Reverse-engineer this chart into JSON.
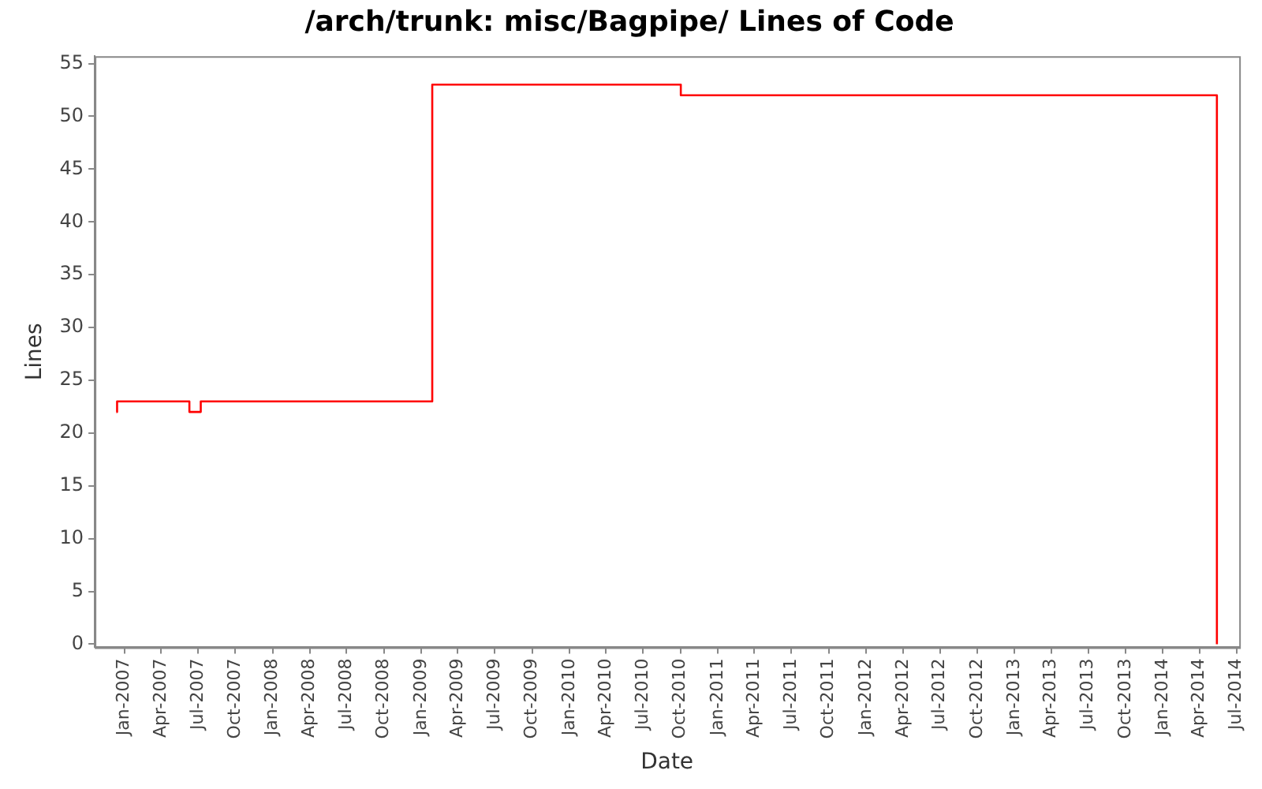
{
  "chart_data": {
    "type": "step",
    "title": "/arch/trunk: misc/Bagpipe/ Lines of Code",
    "xlabel": "Date",
    "ylabel": "Lines",
    "x": [
      "2006-12-12",
      "2006-12-14",
      "2007-06-10",
      "2007-07-08",
      "2009-01-28",
      "2010-10-02",
      "2014-05-14"
    ],
    "series": [
      {
        "color": "#ff0000",
        "values": [
          22,
          23,
          22,
          23,
          53,
          52,
          0
        ]
      }
    ],
    "xlim": [
      "2006-10-20",
      "2014-07-08"
    ],
    "xticks": [
      {
        "value": "2007-01-01",
        "label": "Jan-2007"
      },
      {
        "value": "2007-04-01",
        "label": "Apr-2007"
      },
      {
        "value": "2007-07-01",
        "label": "Jul-2007"
      },
      {
        "value": "2007-10-01",
        "label": "Oct-2007"
      },
      {
        "value": "2008-01-01",
        "label": "Jan-2008"
      },
      {
        "value": "2008-04-01",
        "label": "Apr-2008"
      },
      {
        "value": "2008-07-01",
        "label": "Jul-2008"
      },
      {
        "value": "2008-10-01",
        "label": "Oct-2008"
      },
      {
        "value": "2009-01-01",
        "label": "Jan-2009"
      },
      {
        "value": "2009-04-01",
        "label": "Apr-2009"
      },
      {
        "value": "2009-07-01",
        "label": "Jul-2009"
      },
      {
        "value": "2009-10-01",
        "label": "Oct-2009"
      },
      {
        "value": "2010-01-01",
        "label": "Jan-2010"
      },
      {
        "value": "2010-04-01",
        "label": "Apr-2010"
      },
      {
        "value": "2010-07-01",
        "label": "Jul-2010"
      },
      {
        "value": "2010-10-01",
        "label": "Oct-2010"
      },
      {
        "value": "2011-01-01",
        "label": "Jan-2011"
      },
      {
        "value": "2011-04-01",
        "label": "Apr-2011"
      },
      {
        "value": "2011-07-01",
        "label": "Jul-2011"
      },
      {
        "value": "2011-10-01",
        "label": "Oct-2011"
      },
      {
        "value": "2012-01-01",
        "label": "Jan-2012"
      },
      {
        "value": "2012-04-01",
        "label": "Apr-2012"
      },
      {
        "value": "2012-07-01",
        "label": "Jul-2012"
      },
      {
        "value": "2012-10-01",
        "label": "Oct-2012"
      },
      {
        "value": "2013-01-01",
        "label": "Jan-2013"
      },
      {
        "value": "2013-04-01",
        "label": "Apr-2013"
      },
      {
        "value": "2013-07-01",
        "label": "Jul-2013"
      },
      {
        "value": "2013-10-01",
        "label": "Oct-2013"
      },
      {
        "value": "2014-01-01",
        "label": "Jan-2014"
      },
      {
        "value": "2014-04-01",
        "label": "Apr-2014"
      },
      {
        "value": "2014-07-01",
        "label": "Jul-2014"
      }
    ],
    "ylim": [
      -0.3,
      55.7
    ],
    "yticks": [
      0,
      5,
      10,
      15,
      20,
      25,
      30,
      35,
      40,
      45,
      50,
      55
    ],
    "grid": false,
    "legend": false,
    "marker": "none",
    "line_style": "solid"
  }
}
